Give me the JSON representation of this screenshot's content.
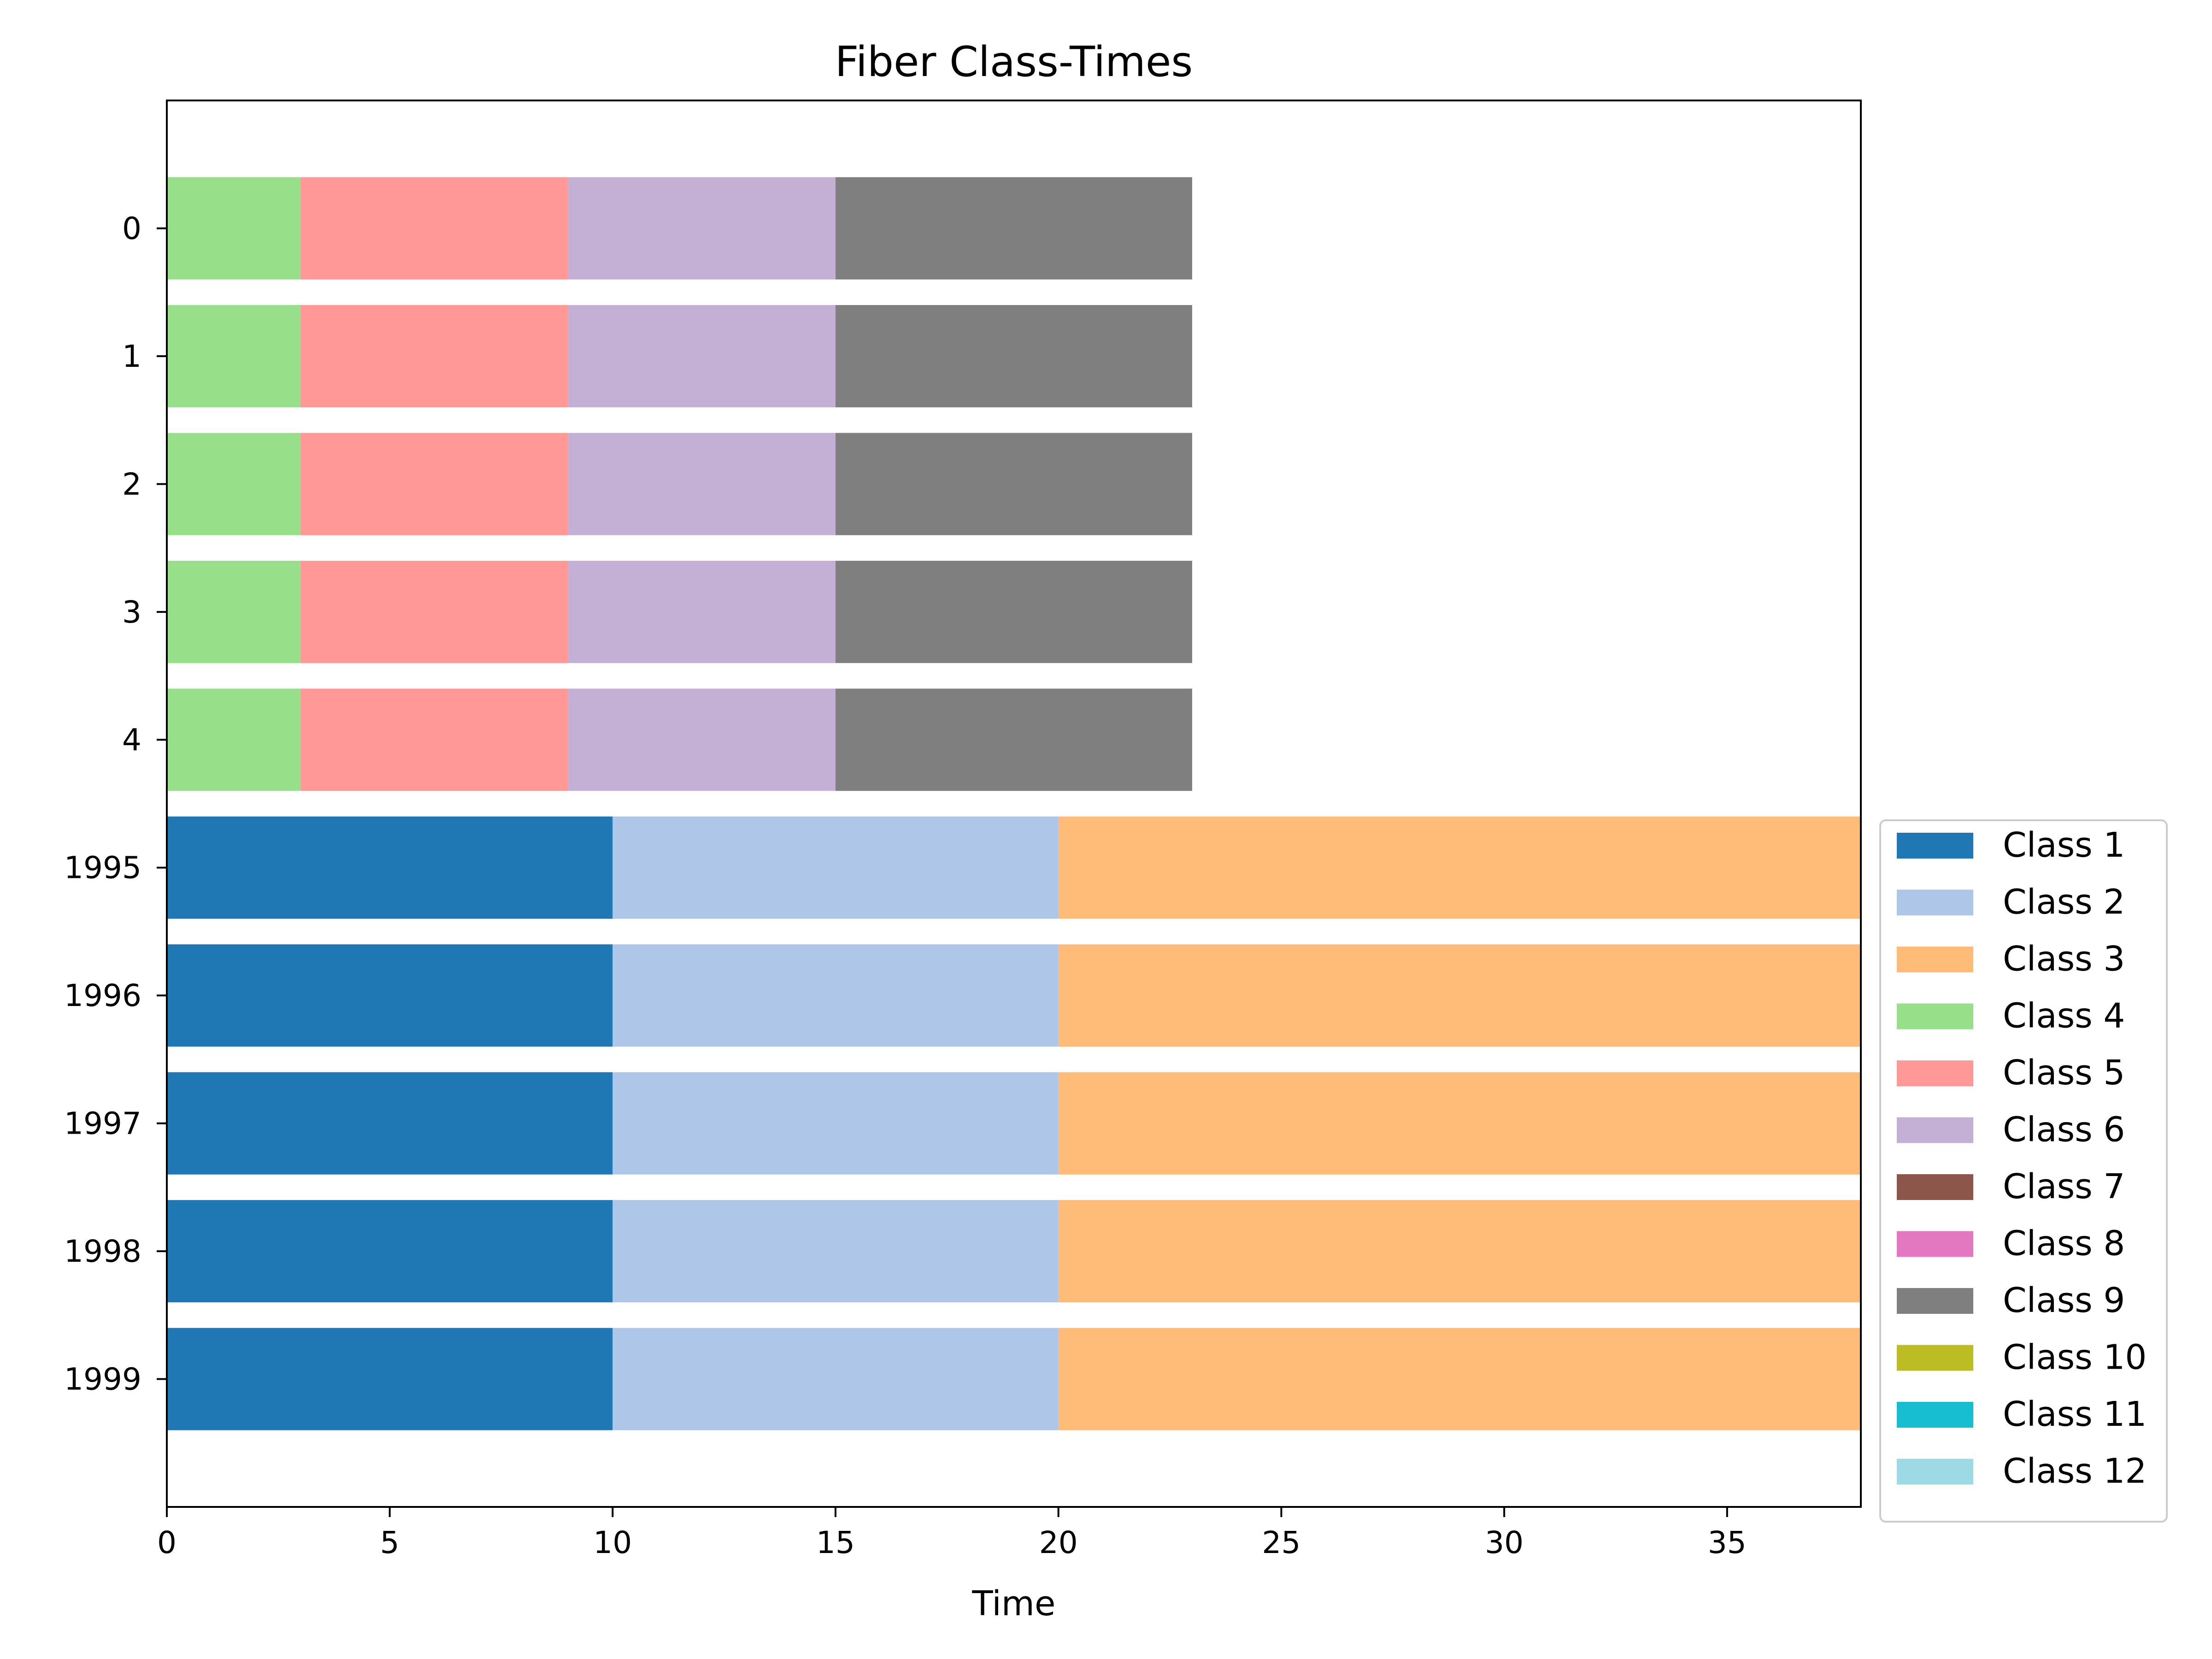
{
  "chart_data": {
    "type": "bar",
    "orientation": "horizontal",
    "stacked": true,
    "title": "Fiber Class-Times",
    "xlabel": "Time",
    "ylabel": "",
    "xlim": [
      0,
      38
    ],
    "x_ticks": [
      0,
      5,
      10,
      15,
      20,
      25,
      30,
      35
    ],
    "grid": false,
    "legend_position": "right, outside plot, lower",
    "categories": [
      "0",
      "1",
      "2",
      "3",
      "4",
      "1995",
      "1996",
      "1997",
      "1998",
      "1999"
    ],
    "series": [
      {
        "name": "Class 1",
        "color": "#1f77b4",
        "values": [
          0,
          0,
          0,
          0,
          0,
          10,
          10,
          10,
          10,
          10
        ]
      },
      {
        "name": "Class 2",
        "color": "#aec7e8",
        "values": [
          0,
          0,
          0,
          0,
          0,
          10,
          10,
          10,
          10,
          10
        ]
      },
      {
        "name": "Class 3",
        "color": "#ffbb78",
        "values": [
          0,
          0,
          0,
          0,
          0,
          18,
          18,
          18,
          18,
          18
        ]
      },
      {
        "name": "Class 4",
        "color": "#98df8a",
        "values": [
          3,
          3,
          3,
          3,
          3,
          0,
          0,
          0,
          0,
          0
        ]
      },
      {
        "name": "Class 5",
        "color": "#ff9896",
        "values": [
          6,
          6,
          6,
          6,
          6,
          0,
          0,
          0,
          0,
          0
        ]
      },
      {
        "name": "Class 6",
        "color": "#c5b0d5",
        "values": [
          6,
          6,
          6,
          6,
          6,
          0,
          0,
          0,
          0,
          0
        ]
      },
      {
        "name": "Class 7",
        "color": "#8c564b",
        "values": [
          0,
          0,
          0,
          0,
          0,
          0,
          0,
          0,
          0,
          0
        ]
      },
      {
        "name": "Class 8",
        "color": "#e377c2",
        "values": [
          0,
          0,
          0,
          0,
          0,
          0,
          0,
          0,
          0,
          0
        ]
      },
      {
        "name": "Class 9",
        "color": "#7f7f7f",
        "values": [
          8,
          8,
          8,
          8,
          8,
          0,
          0,
          0,
          0,
          0
        ]
      },
      {
        "name": "Class 10",
        "color": "#bcbd22",
        "values": [
          0,
          0,
          0,
          0,
          0,
          0,
          0,
          0,
          0,
          0
        ]
      },
      {
        "name": "Class 11",
        "color": "#17becf",
        "values": [
          0,
          0,
          0,
          0,
          0,
          0,
          0,
          0,
          0,
          0
        ]
      },
      {
        "name": "Class 12",
        "color": "#9edae5",
        "values": [
          0,
          0,
          0,
          0,
          0,
          0,
          0,
          0,
          0,
          0
        ]
      }
    ]
  }
}
